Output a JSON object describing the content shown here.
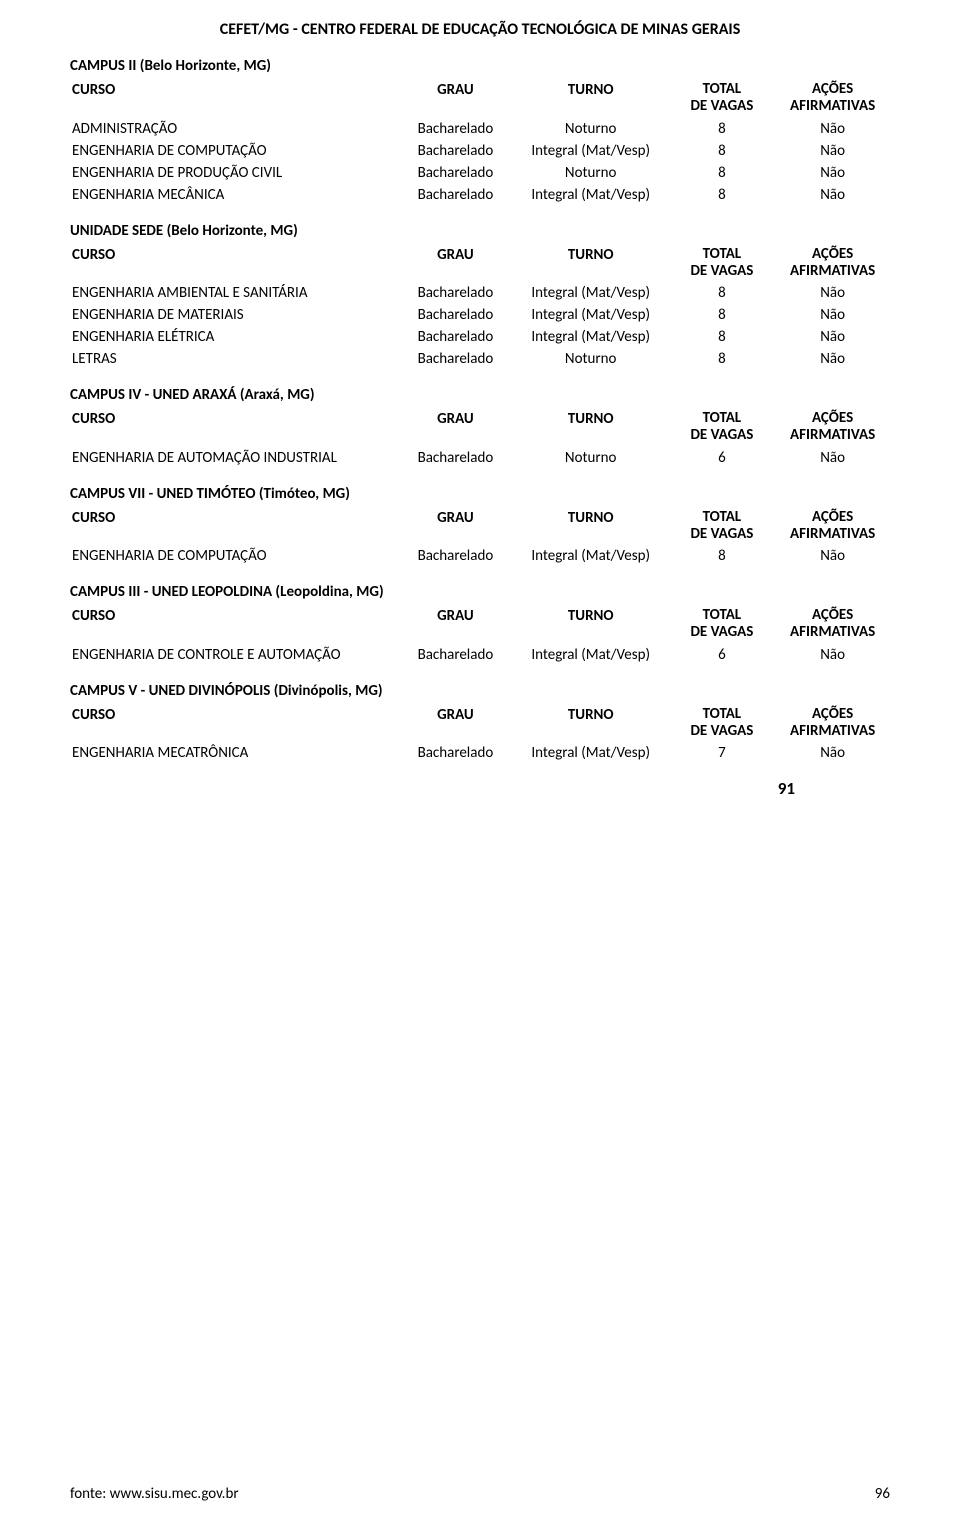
{
  "institution_title": "CEFET/MG - CENTRO FEDERAL DE EDUCAÇÃO TECNOLÓGICA DE MINAS GERAIS",
  "headers": {
    "curso": "CURSO",
    "grau": "GRAU",
    "turno": "TURNO",
    "total_l1": "TOTAL",
    "total_l2": "DE VAGAS",
    "acoes_l1": "AÇÕES",
    "acoes_l2": "AFIRMATIVAS"
  },
  "grand_total": "91",
  "footer_source": "fonte: www.sisu.mec.gov.br",
  "footer_page": "96",
  "campuses": [
    {
      "name": "CAMPUS II (Belo Horizonte, MG)",
      "rows": [
        {
          "curso": "ADMINISTRAÇÃO",
          "grau": "Bacharelado",
          "turno": "Noturno",
          "total": "8",
          "acoes": "Não"
        },
        {
          "curso": "ENGENHARIA DE COMPUTAÇÃO",
          "grau": "Bacharelado",
          "turno": "Integral (Mat/Vesp)",
          "total": "8",
          "acoes": "Não"
        },
        {
          "curso": "ENGENHARIA DE PRODUÇÃO CIVIL",
          "grau": "Bacharelado",
          "turno": "Noturno",
          "total": "8",
          "acoes": "Não"
        },
        {
          "curso": "ENGENHARIA MECÂNICA",
          "grau": "Bacharelado",
          "turno": "Integral (Mat/Vesp)",
          "total": "8",
          "acoes": "Não"
        }
      ]
    },
    {
      "name": "UNIDADE SEDE (Belo Horizonte, MG)",
      "rows": [
        {
          "curso": "ENGENHARIA AMBIENTAL E SANITÁRIA",
          "grau": "Bacharelado",
          "turno": "Integral (Mat/Vesp)",
          "total": "8",
          "acoes": "Não"
        },
        {
          "curso": "ENGENHARIA DE MATERIAIS",
          "grau": "Bacharelado",
          "turno": "Integral (Mat/Vesp)",
          "total": "8",
          "acoes": "Não"
        },
        {
          "curso": "ENGENHARIA ELÉTRICA",
          "grau": "Bacharelado",
          "turno": "Integral (Mat/Vesp)",
          "total": "8",
          "acoes": "Não"
        },
        {
          "curso": "LETRAS",
          "grau": "Bacharelado",
          "turno": "Noturno",
          "total": "8",
          "acoes": "Não"
        }
      ]
    },
    {
      "name": "CAMPUS IV - UNED ARAXÁ (Araxá, MG)",
      "rows": [
        {
          "curso": "ENGENHARIA DE AUTOMAÇÃO INDUSTRIAL",
          "grau": "Bacharelado",
          "turno": "Noturno",
          "total": "6",
          "acoes": "Não"
        }
      ]
    },
    {
      "name": "CAMPUS VII - UNED TIMÓTEO (Timóteo, MG)",
      "rows": [
        {
          "curso": "ENGENHARIA DE COMPUTAÇÃO",
          "grau": "Bacharelado",
          "turno": "Integral (Mat/Vesp)",
          "total": "8",
          "acoes": "Não"
        }
      ]
    },
    {
      "name": "CAMPUS III - UNED LEOPOLDINA (Leopoldina, MG)",
      "rows": [
        {
          "curso": "ENGENHARIA DE CONTROLE E AUTOMAÇÃO",
          "grau": "Bacharelado",
          "turno": "Integral (Mat/Vesp)",
          "total": "6",
          "acoes": "Não"
        }
      ]
    },
    {
      "name": "CAMPUS V - UNED DIVINÓPOLIS (Divinópolis, MG)",
      "rows": [
        {
          "curso": "ENGENHARIA MECATRÔNICA",
          "grau": "Bacharelado",
          "turno": "Integral (Mat/Vesp)",
          "total": "7",
          "acoes": "Não"
        }
      ]
    }
  ]
}
